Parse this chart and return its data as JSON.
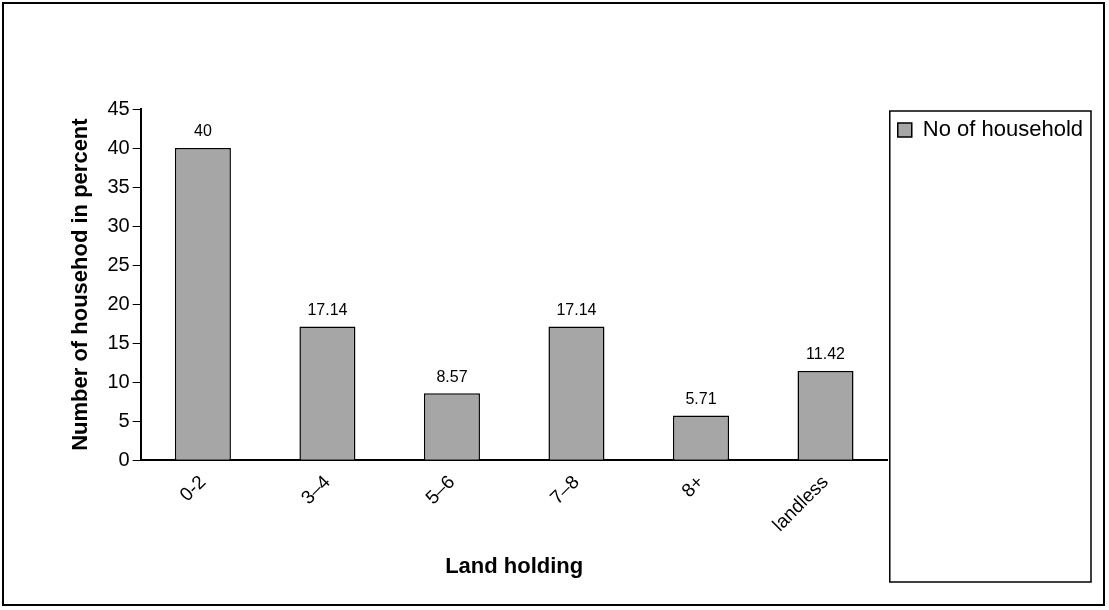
{
  "chart_data": {
    "type": "bar",
    "xlabel": "Land holding",
    "ylabel": "Number of househod in percent",
    "categories": [
      "0-2",
      "3–4",
      "5–6",
      "7–8",
      "8+",
      "landless"
    ],
    "series": [
      {
        "name": "No of household",
        "color": "#a6a6a6",
        "values": [
          40,
          17.14,
          8.57,
          17.14,
          5.71,
          11.42
        ]
      }
    ],
    "ylim": [
      0,
      45
    ],
    "yticks": [
      0,
      5,
      10,
      15,
      20,
      25,
      30,
      35,
      40,
      45
    ],
    "grid": false,
    "legend": "right",
    "data_labels": true
  }
}
